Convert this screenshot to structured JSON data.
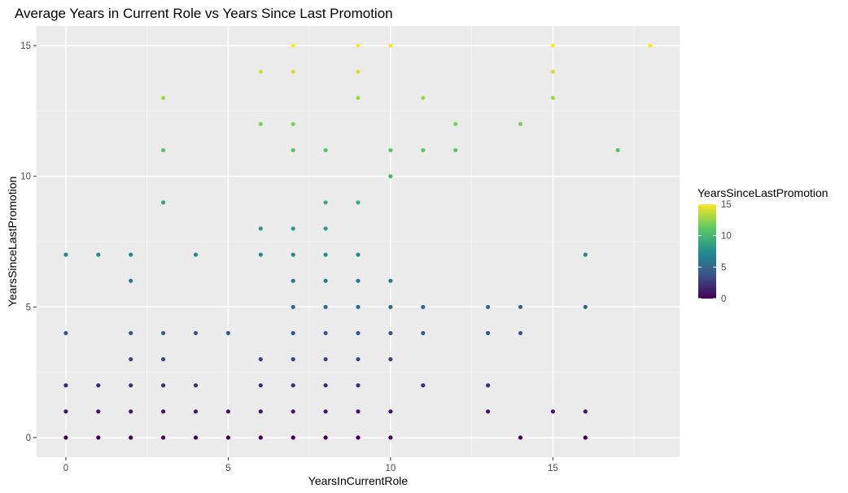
{
  "chart_data": {
    "type": "scatter",
    "title": "Average Years in Current Role vs Years Since Last Promotion",
    "xlabel": "YearsInCurrentRole",
    "ylabel": "YearsSinceLastPromotion",
    "xlim": [
      -0.9,
      18.9
    ],
    "ylim": [
      -0.75,
      15.75
    ],
    "x_ticks": [
      0,
      5,
      10,
      15
    ],
    "y_ticks": [
      0,
      5,
      10,
      15
    ],
    "grid": true,
    "color_scale": "viridis",
    "legend": {
      "title": "YearsSinceLastPromotion",
      "position": "right",
      "breaks": [
        0,
        5,
        10,
        15
      ],
      "limits": [
        0,
        15
      ]
    },
    "points": [
      [
        0,
        0
      ],
      [
        0,
        1
      ],
      [
        0,
        2
      ],
      [
        0,
        4
      ],
      [
        0,
        7
      ],
      [
        1,
        0
      ],
      [
        1,
        1
      ],
      [
        1,
        2
      ],
      [
        1,
        7
      ],
      [
        2,
        0
      ],
      [
        2,
        1
      ],
      [
        2,
        2
      ],
      [
        2,
        3
      ],
      [
        2,
        4
      ],
      [
        2,
        6
      ],
      [
        2,
        7
      ],
      [
        3,
        0
      ],
      [
        3,
        1
      ],
      [
        3,
        2
      ],
      [
        3,
        3
      ],
      [
        3,
        4
      ],
      [
        3,
        9
      ],
      [
        3,
        11
      ],
      [
        3,
        13
      ],
      [
        4,
        0
      ],
      [
        4,
        1
      ],
      [
        4,
        2
      ],
      [
        4,
        4
      ],
      [
        4,
        7
      ],
      [
        5,
        0
      ],
      [
        5,
        1
      ],
      [
        5,
        4
      ],
      [
        6,
        0
      ],
      [
        6,
        1
      ],
      [
        6,
        2
      ],
      [
        6,
        3
      ],
      [
        6,
        7
      ],
      [
        6,
        8
      ],
      [
        6,
        12
      ],
      [
        6,
        14
      ],
      [
        7,
        0
      ],
      [
        7,
        1
      ],
      [
        7,
        2
      ],
      [
        7,
        3
      ],
      [
        7,
        4
      ],
      [
        7,
        5
      ],
      [
        7,
        6
      ],
      [
        7,
        7
      ],
      [
        7,
        8
      ],
      [
        7,
        11
      ],
      [
        7,
        12
      ],
      [
        7,
        14
      ],
      [
        7,
        15
      ],
      [
        8,
        0
      ],
      [
        8,
        1
      ],
      [
        8,
        2
      ],
      [
        8,
        3
      ],
      [
        8,
        4
      ],
      [
        8,
        5
      ],
      [
        8,
        6
      ],
      [
        8,
        7
      ],
      [
        8,
        8
      ],
      [
        8,
        9
      ],
      [
        8,
        11
      ],
      [
        9,
        0
      ],
      [
        9,
        1
      ],
      [
        9,
        2
      ],
      [
        9,
        3
      ],
      [
        9,
        4
      ],
      [
        9,
        5
      ],
      [
        9,
        6
      ],
      [
        9,
        7
      ],
      [
        9,
        9
      ],
      [
        9,
        13
      ],
      [
        9,
        14
      ],
      [
        9,
        15
      ],
      [
        10,
        0
      ],
      [
        10,
        1
      ],
      [
        10,
        3
      ],
      [
        10,
        4
      ],
      [
        10,
        5
      ],
      [
        10,
        6
      ],
      [
        10,
        10
      ],
      [
        10,
        11
      ],
      [
        10,
        15
      ],
      [
        11,
        2
      ],
      [
        11,
        4
      ],
      [
        11,
        5
      ],
      [
        11,
        11
      ],
      [
        11,
        13
      ],
      [
        12,
        11
      ],
      [
        12,
        12
      ],
      [
        13,
        1
      ],
      [
        13,
        2
      ],
      [
        13,
        4
      ],
      [
        13,
        5
      ],
      [
        14,
        0
      ],
      [
        14,
        4
      ],
      [
        14,
        5
      ],
      [
        14,
        12
      ],
      [
        15,
        1
      ],
      [
        15,
        13
      ],
      [
        15,
        14
      ],
      [
        15,
        15
      ],
      [
        16,
        0
      ],
      [
        16,
        1
      ],
      [
        16,
        5
      ],
      [
        16,
        7
      ],
      [
        17,
        11
      ],
      [
        18,
        15
      ]
    ]
  }
}
